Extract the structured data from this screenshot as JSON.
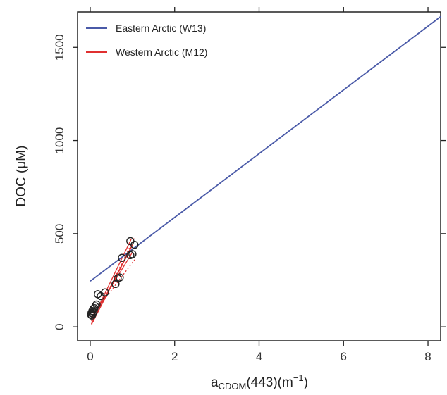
{
  "chart_data": {
    "type": "scatter",
    "xlabel": {
      "main": "a",
      "sub": "CDOM",
      "rest": "(443)(m",
      "sup": "−1",
      "close": ")"
    },
    "ylabel": "DOC (μM)",
    "xlim": [
      -0.3,
      8.3
    ],
    "ylim": [
      -75,
      1690
    ],
    "x_ticks": [
      0,
      2,
      4,
      6,
      8
    ],
    "x_tick_labels": [
      "0",
      "2",
      "4",
      "6",
      "8"
    ],
    "y_ticks": [
      0,
      500,
      1000,
      1500
    ],
    "y_tick_labels": [
      "0",
      "500",
      "1000",
      "1500"
    ],
    "grid": false,
    "legend_position": "top-left",
    "series": [
      {
        "name": "Eastern Arctic (W13)",
        "kind": "line",
        "color": "#4a5aa8",
        "x": [
          0,
          8.3
        ],
        "y": [
          245,
          1665
        ]
      },
      {
        "name": "Western Arctic (M12)",
        "kind": "line",
        "color": "#e03030",
        "x": [
          0.03,
          1.0
        ],
        "y": [
          15,
          440
        ]
      }
    ],
    "extra_lines": [
      {
        "kind": "line",
        "color": "#e03030",
        "dash": "none",
        "x": [
          0.03,
          0.97
        ],
        "y": [
          30,
          470
        ]
      },
      {
        "kind": "line",
        "color": "#e03030",
        "dash": "none",
        "x": [
          0.03,
          1.0
        ],
        "y": [
          45,
          400
        ]
      },
      {
        "kind": "line",
        "color": "#e03030",
        "dash": "2,3",
        "x": [
          0.03,
          1.05
        ],
        "y": [
          10,
          480
        ]
      },
      {
        "kind": "line",
        "color": "#e03030",
        "dash": "2,3",
        "x": [
          0.03,
          1.05
        ],
        "y": [
          55,
          360
        ]
      }
    ],
    "points": {
      "x": [
        0.02,
        0.03,
        0.04,
        0.05,
        0.06,
        0.07,
        0.08,
        0.1,
        0.12,
        0.15,
        0.18,
        0.25,
        0.35,
        0.6,
        0.65,
        0.7,
        0.75,
        0.95,
        1.0,
        1.05,
        0.95
      ],
      "y": [
        65,
        75,
        60,
        85,
        70,
        95,
        80,
        100,
        110,
        120,
        175,
        165,
        185,
        230,
        260,
        265,
        370,
        385,
        390,
        440,
        460
      ]
    }
  }
}
